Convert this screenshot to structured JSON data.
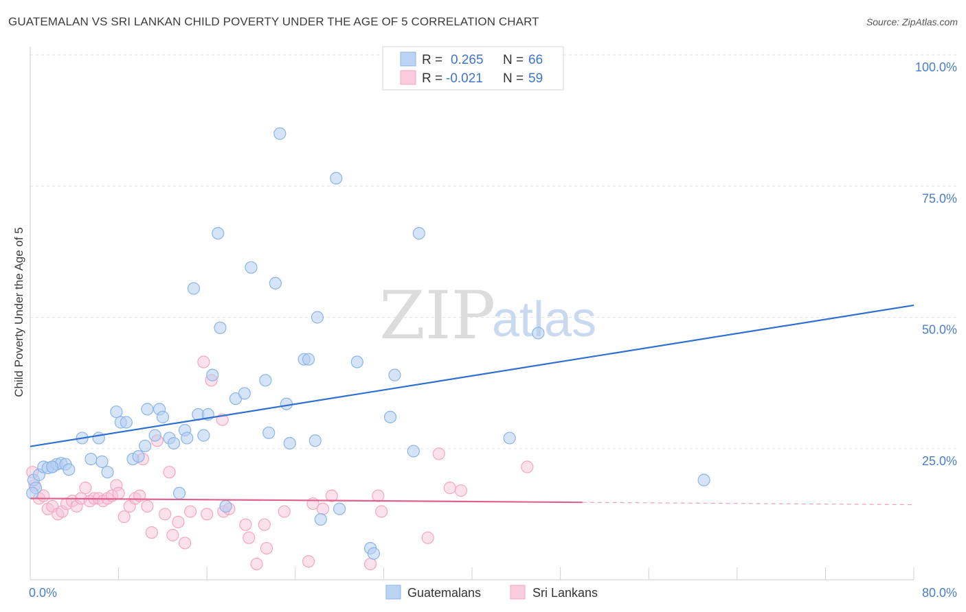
{
  "header": {
    "title": "GUATEMALAN VS SRI LANKAN CHILD POVERTY UNDER THE AGE OF 5 CORRELATION CHART",
    "source": "Source: ZipAtlas.com"
  },
  "watermark": {
    "zip": "ZIP",
    "atlas": "atlas"
  },
  "chart_data": {
    "type": "scatter",
    "title": "GUATEMALAN VS SRI LANKAN CHILD POVERTY UNDER THE AGE OF 5 CORRELATION CHART",
    "xlabel": "",
    "ylabel": "Child Poverty Under the Age of 5",
    "xlim": [
      0,
      80
    ],
    "ylim": [
      0,
      100
    ],
    "x_tick_labels": [
      "0.0%",
      "80.0%"
    ],
    "y_ticks": [
      25,
      50,
      75,
      100
    ],
    "y_tick_labels": [
      "25.0%",
      "50.0%",
      "75.0%",
      "100.0%"
    ],
    "grid": true,
    "legend": {
      "position": "top-center",
      "entries": [
        {
          "r_label": "R =",
          "r_value": "0.265",
          "n_label": "N =",
          "n_value": "66"
        },
        {
          "r_label": "R =",
          "r_value": "-0.021",
          "n_label": "N =",
          "n_value": "59"
        }
      ]
    },
    "series": [
      {
        "name": "Guatemalans",
        "color": "#8ab4e8",
        "line_color": "#2f6fd0",
        "trend": {
          "x0": 0,
          "y0": 25.4,
          "x1": 80,
          "y1": 52.3,
          "dashed_from": null
        },
        "points": [
          [
            0.3,
            19.0
          ],
          [
            0.5,
            17.5
          ],
          [
            0.8,
            20.0
          ],
          [
            1.2,
            21.5
          ],
          [
            1.6,
            21.3
          ],
          [
            2.0,
            21.5
          ],
          [
            2.4,
            22.0
          ],
          [
            2.8,
            22.2
          ],
          [
            3.2,
            22.0
          ],
          [
            3.5,
            21.0
          ],
          [
            4.7,
            27.0
          ],
          [
            5.5,
            23.0
          ],
          [
            6.2,
            27.0
          ],
          [
            6.5,
            22.5
          ],
          [
            7.0,
            20.5
          ],
          [
            7.8,
            32.0
          ],
          [
            8.2,
            30.0
          ],
          [
            8.7,
            30.0
          ],
          [
            9.3,
            23.0
          ],
          [
            9.8,
            23.5
          ],
          [
            10.4,
            25.5
          ],
          [
            10.6,
            32.5
          ],
          [
            11.3,
            27.5
          ],
          [
            11.7,
            32.5
          ],
          [
            12.0,
            31.0
          ],
          [
            12.6,
            27.0
          ],
          [
            13.0,
            26.0
          ],
          [
            13.5,
            16.5
          ],
          [
            14.0,
            28.5
          ],
          [
            14.2,
            27.0
          ],
          [
            14.8,
            55.5
          ],
          [
            15.2,
            31.5
          ],
          [
            15.7,
            27.5
          ],
          [
            16.1,
            31.5
          ],
          [
            16.5,
            39.0
          ],
          [
            17.2,
            48.0
          ],
          [
            17.0,
            66.0
          ],
          [
            17.7,
            14.0
          ],
          [
            18.6,
            34.5
          ],
          [
            19.4,
            35.5
          ],
          [
            20.0,
            59.5
          ],
          [
            21.3,
            38.0
          ],
          [
            21.6,
            28.0
          ],
          [
            22.2,
            56.5
          ],
          [
            22.6,
            85.0
          ],
          [
            23.2,
            33.5
          ],
          [
            23.5,
            26.0
          ],
          [
            24.8,
            42.0
          ],
          [
            25.2,
            42.0
          ],
          [
            25.8,
            26.5
          ],
          [
            26.0,
            50.0
          ],
          [
            26.3,
            11.5
          ],
          [
            27.7,
            76.5
          ],
          [
            28.0,
            13.5
          ],
          [
            29.6,
            41.5
          ],
          [
            30.8,
            6.0
          ],
          [
            31.1,
            5.0
          ],
          [
            32.6,
            31.0
          ],
          [
            33.0,
            39.0
          ],
          [
            34.7,
            24.5
          ],
          [
            35.2,
            66.0
          ],
          [
            43.4,
            27.0
          ],
          [
            46.0,
            47.0
          ],
          [
            61.0,
            19.0
          ],
          [
            2.0,
            21.5
          ],
          [
            0.2,
            16.5
          ]
        ]
      },
      {
        "name": "Sri Lankans",
        "color": "#f4a6c0",
        "line_color": "#e0608d",
        "trend": {
          "x0": 0,
          "y0": 15.5,
          "x1": 80,
          "y1": 14.3,
          "dashed_from": 50
        },
        "points": [
          [
            0.2,
            20.5
          ],
          [
            0.4,
            18.0
          ],
          [
            0.8,
            15.5
          ],
          [
            1.2,
            16.0
          ],
          [
            1.6,
            13.5
          ],
          [
            2.0,
            14.0
          ],
          [
            2.5,
            12.5
          ],
          [
            2.9,
            13.0
          ],
          [
            3.3,
            14.5
          ],
          [
            3.8,
            15.0
          ],
          [
            4.2,
            14.0
          ],
          [
            4.6,
            15.5
          ],
          [
            5.0,
            17.5
          ],
          [
            5.4,
            15.0
          ],
          [
            5.8,
            15.5
          ],
          [
            6.2,
            15.5
          ],
          [
            6.6,
            15.0
          ],
          [
            7.0,
            15.5
          ],
          [
            7.4,
            16.0
          ],
          [
            7.8,
            18.0
          ],
          [
            8.0,
            16.5
          ],
          [
            8.5,
            12.0
          ],
          [
            9.0,
            14.0
          ],
          [
            9.5,
            15.5
          ],
          [
            9.9,
            16.0
          ],
          [
            10.2,
            23.0
          ],
          [
            10.6,
            14.0
          ],
          [
            11.0,
            9.0
          ],
          [
            11.5,
            26.5
          ],
          [
            12.2,
            12.5
          ],
          [
            12.6,
            20.5
          ],
          [
            12.9,
            8.5
          ],
          [
            13.4,
            11.0
          ],
          [
            14.0,
            7.0
          ],
          [
            14.5,
            13.0
          ],
          [
            15.7,
            41.5
          ],
          [
            16.0,
            12.5
          ],
          [
            16.4,
            38.0
          ],
          [
            17.5,
            13.0
          ],
          [
            17.4,
            30.5
          ],
          [
            18.0,
            13.5
          ],
          [
            19.5,
            10.5
          ],
          [
            19.8,
            8.0
          ],
          [
            20.5,
            3.0
          ],
          [
            21.4,
            6.0
          ],
          [
            21.2,
            10.5
          ],
          [
            23.0,
            13.0
          ],
          [
            25.2,
            3.5
          ],
          [
            25.6,
            14.5
          ],
          [
            26.5,
            13.5
          ],
          [
            27.3,
            16.0
          ],
          [
            30.8,
            3.0
          ],
          [
            31.5,
            16.0
          ],
          [
            31.8,
            13.0
          ],
          [
            36.0,
            8.0
          ],
          [
            37.0,
            24.0
          ],
          [
            38.0,
            17.5
          ],
          [
            39.0,
            17.0
          ],
          [
            45.0,
            21.5
          ]
        ]
      }
    ],
    "bottom_legend": [
      "Guatemalans",
      "Sri Lankans"
    ]
  }
}
